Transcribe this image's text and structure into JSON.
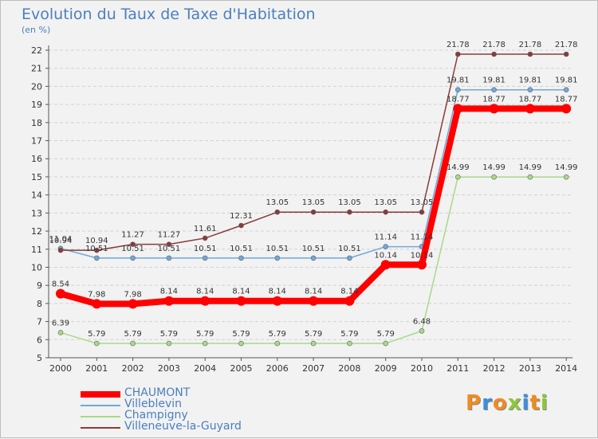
{
  "title": "Evolution du Taux de Taxe d'Habitation",
  "unit": "(en %)",
  "logo": "Proxiti",
  "logo_colors": [
    "#f08c1e",
    "#3c8ee0",
    "#f08c1e",
    "#8cc83c",
    "#3c8ee0",
    "#f08c1e",
    "#8cc83c"
  ],
  "chart_data": {
    "type": "line",
    "title": "Evolution du Taux de Taxe d'Habitation",
    "ylabel": "(en %)",
    "xlabel": "",
    "x": [
      "2000",
      "2001",
      "2002",
      "2003",
      "2004",
      "2005",
      "2006",
      "2007",
      "2008",
      "2009",
      "2010",
      "2011",
      "2012",
      "2013",
      "2014"
    ],
    "ylim": [
      5,
      22
    ],
    "yticks": [
      5,
      6,
      7,
      8,
      9,
      10,
      11,
      12,
      13,
      14,
      15,
      16,
      17,
      18,
      19,
      20,
      21,
      22
    ],
    "legend_position": "bottom-left",
    "series": [
      {
        "name": "CHAUMONT",
        "color": "#ff0000",
        "values": [
          8.54,
          7.98,
          7.98,
          8.14,
          8.14,
          8.14,
          8.14,
          8.14,
          8.14,
          10.14,
          10.14,
          18.77,
          18.77,
          18.77,
          18.77
        ],
        "labels": [
          "8.54",
          "7.98",
          "7.98",
          "8.14",
          "8.14",
          "8.14",
          "8.14",
          "8.14",
          "8.14",
          "10.14",
          "10.14",
          "18.77",
          "18.77",
          "18.77",
          "18.77"
        ]
      },
      {
        "name": "Villeblevin",
        "color": "#6fa8dc",
        "values": [
          11.04,
          10.51,
          10.51,
          10.51,
          10.51,
          10.51,
          10.51,
          10.51,
          10.51,
          11.14,
          11.14,
          19.81,
          19.81,
          19.81,
          19.81
        ],
        "labels": [
          "11.04",
          "10.51",
          "10.51",
          "10.51",
          "10.51",
          "10.51",
          "10.51",
          "10.51",
          "10.51",
          "11.14",
          "11.14",
          "19.81",
          "19.81",
          "19.81",
          "19.81"
        ]
      },
      {
        "name": "Champigny",
        "color": "#a8d98a",
        "values": [
          6.39,
          5.79,
          5.79,
          5.79,
          5.79,
          5.79,
          5.79,
          5.79,
          5.79,
          5.79,
          6.48,
          14.99,
          14.99,
          14.99,
          14.99
        ],
        "labels": [
          "6.39",
          "5.79",
          "5.79",
          "5.79",
          "5.79",
          "5.79",
          "5.79",
          "5.79",
          "5.79",
          "5.79",
          "6.48",
          "14.99",
          "14.99",
          "14.99",
          "14.99"
        ]
      },
      {
        "name": "Villeneuve-la-Guyard",
        "color": "#8b3a3a",
        "values": [
          10.94,
          10.94,
          11.27,
          11.27,
          11.61,
          12.31,
          13.05,
          13.05,
          13.05,
          13.05,
          13.05,
          21.78,
          21.78,
          21.78,
          21.78
        ],
        "labels": [
          "10.94",
          "10.94",
          "11.27",
          "11.27",
          "11.61",
          "12.31",
          "13.05",
          "13.05",
          "13.05",
          "13.05",
          "13.05",
          "21.78",
          "21.78",
          "21.78",
          "21.78"
        ]
      }
    ]
  }
}
